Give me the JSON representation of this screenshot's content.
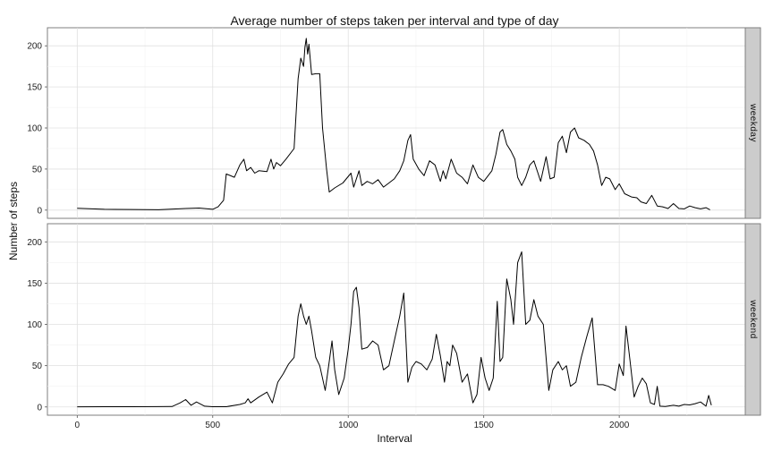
{
  "chart_data": {
    "type": "line",
    "title": "Average number of steps taken per interval and type of day",
    "xlabel": "Interval",
    "ylabel": "Number of steps",
    "xlim": [
      -110,
      2465
    ],
    "ylim": [
      -10,
      222
    ],
    "x_ticks": [
      0,
      500,
      1000,
      1500,
      2000
    ],
    "y_ticks": [
      0,
      50,
      100,
      150,
      200
    ],
    "grid": true,
    "line_color": "#000000",
    "panels": [
      {
        "strip_label": "weekday",
        "points": [
          [
            0,
            2.3
          ],
          [
            100,
            1.0
          ],
          [
            200,
            0.8
          ],
          [
            300,
            0.5
          ],
          [
            400,
            2.0
          ],
          [
            450,
            2.5
          ],
          [
            500,
            1.0
          ],
          [
            520,
            4.0
          ],
          [
            540,
            12.0
          ],
          [
            550,
            44.0
          ],
          [
            580,
            40.0
          ],
          [
            600,
            55.0
          ],
          [
            615,
            62.0
          ],
          [
            625,
            48.0
          ],
          [
            640,
            52.0
          ],
          [
            655,
            45.0
          ],
          [
            670,
            48.0
          ],
          [
            700,
            47.0
          ],
          [
            715,
            62.0
          ],
          [
            725,
            50.0
          ],
          [
            735,
            58.0
          ],
          [
            750,
            54.0
          ],
          [
            770,
            62.0
          ],
          [
            800,
            75.0
          ],
          [
            815,
            160.0
          ],
          [
            825,
            185.0
          ],
          [
            835,
            175.0
          ],
          [
            840,
            198.0
          ],
          [
            845,
            209.0
          ],
          [
            850,
            190.0
          ],
          [
            855,
            202.0
          ],
          [
            865,
            165.0
          ],
          [
            880,
            166.0
          ],
          [
            895,
            166.0
          ],
          [
            905,
            100.0
          ],
          [
            920,
            50.0
          ],
          [
            930,
            22.0
          ],
          [
            950,
            27.0
          ],
          [
            980,
            33.0
          ],
          [
            1010,
            45.0
          ],
          [
            1020,
            28.0
          ],
          [
            1040,
            48.0
          ],
          [
            1050,
            30.0
          ],
          [
            1070,
            35.0
          ],
          [
            1090,
            32.0
          ],
          [
            1110,
            37.0
          ],
          [
            1130,
            28.0
          ],
          [
            1150,
            33.0
          ],
          [
            1170,
            38.0
          ],
          [
            1190,
            48.0
          ],
          [
            1205,
            60.0
          ],
          [
            1220,
            85.0
          ],
          [
            1230,
            92.0
          ],
          [
            1240,
            62.0
          ],
          [
            1260,
            50.0
          ],
          [
            1280,
            42.0
          ],
          [
            1300,
            60.0
          ],
          [
            1320,
            55.0
          ],
          [
            1340,
            35.0
          ],
          [
            1350,
            48.0
          ],
          [
            1360,
            38.0
          ],
          [
            1380,
            62.0
          ],
          [
            1400,
            45.0
          ],
          [
            1420,
            40.0
          ],
          [
            1440,
            32.0
          ],
          [
            1460,
            55.0
          ],
          [
            1480,
            40.0
          ],
          [
            1500,
            35.0
          ],
          [
            1530,
            48.0
          ],
          [
            1545,
            68.0
          ],
          [
            1560,
            95.0
          ],
          [
            1570,
            98.0
          ],
          [
            1585,
            80.0
          ],
          [
            1600,
            72.0
          ],
          [
            1615,
            62.0
          ],
          [
            1625,
            40.0
          ],
          [
            1640,
            30.0
          ],
          [
            1655,
            40.0
          ],
          [
            1670,
            55.0
          ],
          [
            1685,
            60.0
          ],
          [
            1700,
            45.0
          ],
          [
            1710,
            35.0
          ],
          [
            1730,
            65.0
          ],
          [
            1745,
            38.0
          ],
          [
            1760,
            40.0
          ],
          [
            1775,
            82.0
          ],
          [
            1790,
            90.0
          ],
          [
            1805,
            70.0
          ],
          [
            1820,
            95.0
          ],
          [
            1835,
            100.0
          ],
          [
            1850,
            88.0
          ],
          [
            1870,
            85.0
          ],
          [
            1890,
            80.0
          ],
          [
            1905,
            72.0
          ],
          [
            1920,
            55.0
          ],
          [
            1935,
            30.0
          ],
          [
            1950,
            40.0
          ],
          [
            1965,
            38.0
          ],
          [
            1985,
            25.0
          ],
          [
            2000,
            32.0
          ],
          [
            2020,
            20.0
          ],
          [
            2045,
            16.0
          ],
          [
            2065,
            15.0
          ],
          [
            2080,
            10.0
          ],
          [
            2100,
            8.0
          ],
          [
            2120,
            18.0
          ],
          [
            2140,
            5.0
          ],
          [
            2160,
            4.0
          ],
          [
            2180,
            2.0
          ],
          [
            2200,
            8.0
          ],
          [
            2220,
            2.0
          ],
          [
            2240,
            1.5
          ],
          [
            2260,
            5.0
          ],
          [
            2280,
            3.0
          ],
          [
            2300,
            1.5
          ],
          [
            2320,
            3.0
          ],
          [
            2335,
            0.5
          ]
        ]
      },
      {
        "strip_label": "weekend",
        "points": [
          [
            0,
            0.2
          ],
          [
            100,
            0.3
          ],
          [
            200,
            0.3
          ],
          [
            300,
            0.4
          ],
          [
            350,
            0.5
          ],
          [
            380,
            5.0
          ],
          [
            400,
            9.0
          ],
          [
            420,
            2.0
          ],
          [
            440,
            6.0
          ],
          [
            470,
            1.0
          ],
          [
            500,
            0.3
          ],
          [
            550,
            0.3
          ],
          [
            600,
            3.0
          ],
          [
            620,
            5.0
          ],
          [
            630,
            10.0
          ],
          [
            640,
            5.0
          ],
          [
            670,
            12.0
          ],
          [
            700,
            18.0
          ],
          [
            720,
            5.0
          ],
          [
            740,
            30.0
          ],
          [
            760,
            40.0
          ],
          [
            780,
            52.0
          ],
          [
            800,
            60.0
          ],
          [
            815,
            110.0
          ],
          [
            825,
            125.0
          ],
          [
            835,
            110.0
          ],
          [
            845,
            100.0
          ],
          [
            855,
            110.0
          ],
          [
            865,
            92.0
          ],
          [
            880,
            60.0
          ],
          [
            895,
            50.0
          ],
          [
            915,
            20.0
          ],
          [
            930,
            55.0
          ],
          [
            940,
            80.0
          ],
          [
            950,
            45.0
          ],
          [
            965,
            15.0
          ],
          [
            985,
            35.0
          ],
          [
            1000,
            70.0
          ],
          [
            1010,
            100.0
          ],
          [
            1020,
            140.0
          ],
          [
            1030,
            145.0
          ],
          [
            1040,
            120.0
          ],
          [
            1050,
            70.0
          ],
          [
            1070,
            72.0
          ],
          [
            1090,
            80.0
          ],
          [
            1110,
            75.0
          ],
          [
            1130,
            45.0
          ],
          [
            1150,
            50.0
          ],
          [
            1170,
            80.0
          ],
          [
            1190,
            110.0
          ],
          [
            1205,
            138.0
          ],
          [
            1220,
            30.0
          ],
          [
            1235,
            48.0
          ],
          [
            1250,
            55.0
          ],
          [
            1270,
            52.0
          ],
          [
            1290,
            45.0
          ],
          [
            1310,
            58.0
          ],
          [
            1325,
            88.0
          ],
          [
            1340,
            62.0
          ],
          [
            1355,
            30.0
          ],
          [
            1365,
            55.0
          ],
          [
            1375,
            50.0
          ],
          [
            1385,
            75.0
          ],
          [
            1400,
            65.0
          ],
          [
            1420,
            30.0
          ],
          [
            1440,
            40.0
          ],
          [
            1460,
            5.0
          ],
          [
            1475,
            15.0
          ],
          [
            1490,
            60.0
          ],
          [
            1505,
            35.0
          ],
          [
            1520,
            20.0
          ],
          [
            1535,
            35.0
          ],
          [
            1550,
            128.0
          ],
          [
            1560,
            55.0
          ],
          [
            1570,
            60.0
          ],
          [
            1585,
            155.0
          ],
          [
            1600,
            130.0
          ],
          [
            1610,
            100.0
          ],
          [
            1625,
            175.0
          ],
          [
            1640,
            188.0
          ],
          [
            1655,
            100.0
          ],
          [
            1670,
            105.0
          ],
          [
            1685,
            130.0
          ],
          [
            1700,
            110.0
          ],
          [
            1720,
            100.0
          ],
          [
            1740,
            20.0
          ],
          [
            1755,
            45.0
          ],
          [
            1775,
            55.0
          ],
          [
            1790,
            45.0
          ],
          [
            1805,
            50.0
          ],
          [
            1820,
            25.0
          ],
          [
            1840,
            30.0
          ],
          [
            1860,
            60.0
          ],
          [
            1880,
            85.0
          ],
          [
            1900,
            108.0
          ],
          [
            1920,
            27.0
          ],
          [
            1940,
            27.0
          ],
          [
            1960,
            25.0
          ],
          [
            1985,
            20.0
          ],
          [
            2000,
            52.0
          ],
          [
            2015,
            38.0
          ],
          [
            2025,
            98.0
          ],
          [
            2040,
            55.0
          ],
          [
            2055,
            12.0
          ],
          [
            2070,
            25.0
          ],
          [
            2085,
            35.0
          ],
          [
            2100,
            28.0
          ],
          [
            2115,
            5.0
          ],
          [
            2130,
            3.0
          ],
          [
            2140,
            25.0
          ],
          [
            2150,
            1.0
          ],
          [
            2170,
            0.5
          ],
          [
            2200,
            2.0
          ],
          [
            2220,
            1.0
          ],
          [
            2240,
            3.0
          ],
          [
            2260,
            2.5
          ],
          [
            2280,
            4.0
          ],
          [
            2300,
            6.0
          ],
          [
            2320,
            1.0
          ],
          [
            2330,
            14.0
          ],
          [
            2340,
            2.0
          ]
        ]
      }
    ]
  }
}
